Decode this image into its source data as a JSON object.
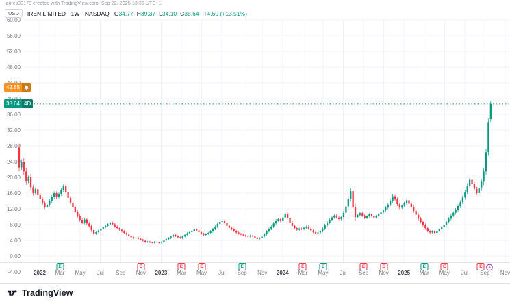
{
  "attribution": "james30178 created with TradingView.com, Sep 22, 2025 13:30 UTC+1",
  "legend": {
    "currency": "USD",
    "symbol_title": "IREN LIMITED · 1W · NASDAQ",
    "o_label": "O",
    "o": "34.77",
    "h_label": "H",
    "h": "39.37",
    "l_label": "L",
    "l": "34.10",
    "c_label": "C",
    "c": "38.64",
    "change": "+4.60 (+13.51%)"
  },
  "price_tags": {
    "alert": {
      "price": "42.85"
    },
    "last": {
      "price": "38.64",
      "countdown": "4D"
    }
  },
  "footer": {
    "brand": "TradingView"
  },
  "colors": {
    "up": "#089981",
    "down": "#f23645",
    "alert": "#f7941d",
    "upcoming": "#ab47bc",
    "grid": "#f0f3fa",
    "axis_text": "#787b86",
    "text": "#131722"
  },
  "earnings_badges": [
    {
      "label_index": 1,
      "result": "beat"
    },
    {
      "label_index": 5,
      "result": "miss"
    },
    {
      "label_index": 7,
      "result": "miss"
    },
    {
      "label_index": 8,
      "result": "miss"
    },
    {
      "label_index": 10,
      "result": "beat"
    },
    {
      "label_index": 13,
      "result": "miss"
    },
    {
      "label_index": 14,
      "result": "beat"
    },
    {
      "label_index": 16,
      "result": "miss"
    },
    {
      "label_index": 17,
      "result": "miss"
    },
    {
      "label_index": 19,
      "result": "beat"
    },
    {
      "label_index": 20,
      "result": "miss"
    },
    {
      "label_index": 22,
      "result": "miss"
    }
  ],
  "upcoming_earnings": {
    "label_index": 22
  },
  "chart_data": {
    "type": "candlestick",
    "title": "IREN LIMITED",
    "timeframe": "1W",
    "exchange": "NASDAQ",
    "unit": "USD",
    "price_axis": {
      "min": -4,
      "max": 60,
      "step": 4
    },
    "current_price": 38.64,
    "alert_price": 42.85,
    "time_labels": [
      "2022",
      "Mar",
      "May",
      "Jul",
      "Sep",
      "Nov",
      "2023",
      "Mar",
      "May",
      "Jul",
      "Sep",
      "Nov",
      "2024",
      "Mar",
      "May",
      "Jul",
      "Sep",
      "Nov",
      "2025",
      "Mar",
      "May",
      "Jul",
      "Sep",
      "Nov"
    ],
    "first_open": 27.5,
    "closes": [
      22.5,
      24.0,
      21.5,
      19.0,
      20.0,
      17.5,
      16.0,
      17.0,
      15.5,
      14.5,
      13.5,
      12.5,
      13.0,
      14.0,
      15.0,
      16.0,
      15.0,
      15.8,
      16.8,
      17.8,
      16.3,
      14.8,
      13.6,
      12.4,
      11.2,
      10.2,
      9.2,
      8.5,
      9.3,
      8.3,
      7.6,
      6.6,
      5.7,
      6.1,
      6.5,
      6.9,
      7.3,
      7.7,
      8.1,
      8.5,
      8.1,
      7.5,
      7.1,
      6.7,
      6.3,
      5.9,
      5.5,
      5.1,
      4.8,
      4.5,
      4.7,
      4.4,
      4.2,
      3.9,
      3.6,
      3.7,
      3.5,
      3.4,
      3.6,
      3.5,
      3.4,
      3.6,
      4.0,
      4.3,
      4.6,
      5.0,
      5.4,
      5.1,
      4.8,
      4.6,
      5.0,
      5.4,
      5.8,
      6.1,
      6.4,
      6.8,
      6.5,
      6.1,
      5.7,
      5.4,
      5.6,
      5.9,
      6.3,
      6.9,
      7.5,
      8.2,
      8.7,
      9.0,
      8.4,
      7.7,
      7.2,
      6.8,
      6.4,
      6.0,
      5.7,
      5.5,
      5.3,
      5.1,
      5.0,
      5.2,
      5.0,
      4.7,
      4.4,
      4.6,
      5.0,
      5.6,
      6.3,
      6.9,
      7.5,
      8.3,
      9.0,
      9.4,
      8.9,
      9.8,
      10.8,
      9.7,
      8.5,
      7.7,
      7.1,
      6.7,
      7.0,
      6.8,
      7.2,
      7.5,
      7.0,
      6.5,
      6.1,
      5.8,
      6.0,
      6.4,
      7.0,
      7.8,
      8.5,
      9.2,
      9.8,
      10.3,
      9.8,
      9.4,
      9.9,
      11.0,
      12.6,
      14.6,
      16.5,
      12.4,
      9.9,
      10.4,
      10.9,
      10.3,
      9.7,
      10.1,
      10.6,
      10.2,
      9.8,
      10.2,
      10.7,
      11.1,
      11.6,
      12.3,
      13.1,
      14.0,
      15.2,
      14.4,
      13.2,
      12.3,
      12.8,
      13.4,
      14.2,
      13.3,
      12.5,
      11.5,
      10.5,
      9.5,
      8.7,
      7.9,
      7.1,
      6.4,
      6.0,
      6.3,
      5.9,
      6.3,
      6.8,
      7.3,
      7.9,
      8.7,
      9.5,
      10.3,
      11.0,
      11.8,
      12.7,
      13.7,
      14.9,
      16.3,
      17.9,
      19.4,
      18.3,
      17.1,
      16.0,
      17.2,
      18.9,
      21.5,
      26.4,
      34.04,
      38.64
    ],
    "last_candle": {
      "open": 34.77,
      "high": 39.37,
      "low": 34.1,
      "close": 38.64
    }
  }
}
